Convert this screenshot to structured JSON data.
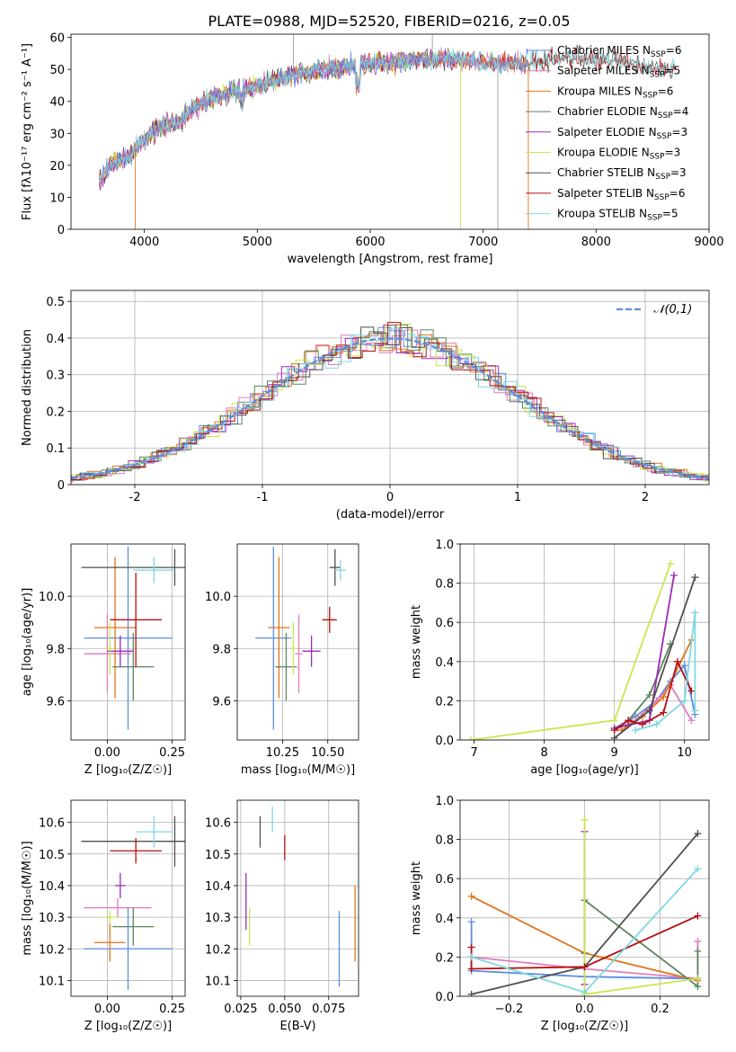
{
  "page_title": "PLATE=0988, MJD=52520, FIBERID=0216, z=0.05",
  "colors": {
    "Chabrier MILES": "#5b8ee0",
    "Salpeter MILES": "#e07cbf",
    "Kroupa MILES": "#e0751a",
    "Chabrier ELODIE": "#5c8560",
    "Salpeter ELODIE": "#9a2bb8",
    "Kroupa ELODIE": "#cbe650",
    "Chabrier STELIB": "#505050",
    "Salpeter STELIB": "#b51010",
    "Kroupa STELIB": "#7fd8e0",
    "normal": "#5b8ee0"
  },
  "chart_data": [
    {
      "id": "spectrum",
      "type": "line",
      "title": "PLATE=0988, MJD=52520, FIBERID=0216, z=0.05",
      "xlabel": "wavelength [Angstrom, rest frame]",
      "ylabel": "Flux [fλ10⁻¹⁷ erg cm⁻² s⁻¹ A⁻¹]",
      "xlim": [
        3350,
        9000
      ],
      "ylim": [
        0,
        61
      ],
      "xticks": [
        4000,
        5000,
        6000,
        7000,
        8000,
        9000
      ],
      "yticks": [
        0,
        10,
        20,
        30,
        40,
        50,
        60
      ],
      "grid": false,
      "legend": "top-right",
      "legend_entries": [
        {
          "name": "Chabrier MILES",
          "nssp": "6"
        },
        {
          "name": "Salpeter MILES",
          "nssp": "5"
        },
        {
          "name": "Kroupa MILES",
          "nssp": "6"
        },
        {
          "name": "Chabrier ELODIE",
          "nssp": "4"
        },
        {
          "name": "Salpeter ELODIE",
          "nssp": "3"
        },
        {
          "name": "Kroupa ELODIE",
          "nssp": "3"
        },
        {
          "name": "Chabrier STELIB",
          "nssp": "3"
        },
        {
          "name": "Salpeter STELIB",
          "nssp": "6"
        },
        {
          "name": "Kroupa STELIB",
          "nssp": "5"
        }
      ],
      "continuum": [
        [
          3600,
          15
        ],
        [
          3700,
          20
        ],
        [
          3800,
          22
        ],
        [
          3900,
          24
        ],
        [
          4000,
          28
        ],
        [
          4100,
          31
        ],
        [
          4200,
          33
        ],
        [
          4300,
          33
        ],
        [
          4400,
          37
        ],
        [
          4600,
          41
        ],
        [
          4800,
          43
        ],
        [
          5000,
          45
        ],
        [
          5200,
          47
        ],
        [
          5400,
          49
        ],
        [
          5600,
          50
        ],
        [
          5800,
          51
        ],
        [
          6000,
          52
        ],
        [
          6200,
          52
        ],
        [
          6400,
          53
        ],
        [
          6600,
          53
        ],
        [
          6800,
          53
        ],
        [
          7000,
          52
        ],
        [
          7200,
          52
        ],
        [
          7400,
          52
        ],
        [
          7600,
          53
        ],
        [
          7800,
          54
        ],
        [
          8000,
          53
        ],
        [
          8200,
          53
        ],
        [
          8400,
          51
        ],
        [
          8600,
          50
        ],
        [
          8700,
          50
        ]
      ],
      "drops": [
        [
          3920,
          0
        ],
        [
          5320,
          61
        ],
        [
          6550,
          61
        ],
        [
          6800,
          0
        ],
        [
          7130,
          0
        ],
        [
          7400,
          0
        ]
      ]
    },
    {
      "id": "residuals",
      "type": "step",
      "xlabel": "(data-model)/error",
      "ylabel": "Normed distribution",
      "xlim": [
        -2.5,
        2.5
      ],
      "ylim": [
        0,
        0.53
      ],
      "xticks": [
        -2,
        -1,
        0,
        1,
        2
      ],
      "yticks": [
        0.0,
        0.1,
        0.2,
        0.3,
        0.4,
        0.5
      ],
      "grid": true,
      "legend": "top-right",
      "normal_label": "𝒩(0,1)"
    },
    {
      "id": "age-vs-Z",
      "type": "errorbar",
      "xlabel": "Z [log₁₀(Z/Z☉)]",
      "ylabel": "age  [log₁₀(age/yr)]",
      "xlim": [
        -0.14,
        0.3
      ],
      "ylim": [
        9.45,
        10.2
      ],
      "xticks": [
        0.0,
        0.25
      ],
      "xticklabels": [
        "0.00",
        "0.25"
      ],
      "yticks": [
        9.6,
        9.8,
        10.0
      ],
      "yticklabels": [
        "9.6",
        "9.8",
        "10.0"
      ],
      "grid": true,
      "points": [
        {
          "s": "Chabrier MILES",
          "x": 0.08,
          "y": 9.84,
          "xe": 0.17,
          "ye": 0.35
        },
        {
          "s": "Salpeter MILES",
          "x": 0.0,
          "y": 9.78,
          "xe": 0.09,
          "ye": 0.15
        },
        {
          "s": "Kroupa MILES",
          "x": 0.03,
          "y": 9.88,
          "xe": 0.08,
          "ye": 0.27
        },
        {
          "s": "Chabrier ELODIE",
          "x": 0.1,
          "y": 9.73,
          "xe": 0.08,
          "ye": 0.13
        },
        {
          "s": "Salpeter ELODIE",
          "x": 0.05,
          "y": 9.79,
          "xe": 0.05,
          "ye": 0.06
        },
        {
          "s": "Kroupa ELODIE",
          "x": 0.01,
          "y": 9.8,
          "xe": 0.02,
          "ye": 0.1
        },
        {
          "s": "Chabrier STELIB",
          "x": 0.26,
          "y": 10.11,
          "xe": 0.36,
          "ye": 0.07
        },
        {
          "s": "Salpeter STELIB",
          "x": 0.11,
          "y": 9.91,
          "xe": 0.1,
          "ye": 0.18
        },
        {
          "s": "Kroupa STELIB",
          "x": 0.18,
          "y": 10.1,
          "xe": 0.08,
          "ye": 0.05
        }
      ]
    },
    {
      "id": "age-vs-mass",
      "type": "errorbar",
      "xlabel": "mass [log₁₀(M/M☉)]",
      "ylabel": "",
      "xlim": [
        10.0,
        10.67
      ],
      "ylim": [
        9.45,
        10.2
      ],
      "xticks": [
        10.25,
        10.5
      ],
      "xticklabels": [
        "10.25",
        "10.50"
      ],
      "yticks": [
        9.6,
        9.8,
        10.0
      ],
      "yticklabels": [
        "9.6",
        "9.8",
        "10.0"
      ],
      "grid": true,
      "points": [
        {
          "s": "Chabrier MILES",
          "x": 10.2,
          "y": 9.84,
          "xe": 0.1,
          "ye": 0.35
        },
        {
          "s": "Salpeter MILES",
          "x": 10.34,
          "y": 9.78,
          "xe": 0.02,
          "ye": 0.15
        },
        {
          "s": "Kroupa MILES",
          "x": 10.23,
          "y": 9.88,
          "xe": 0.06,
          "ye": 0.27
        },
        {
          "s": "Chabrier ELODIE",
          "x": 10.27,
          "y": 9.73,
          "xe": 0.06,
          "ye": 0.13
        },
        {
          "s": "Salpeter ELODIE",
          "x": 10.41,
          "y": 9.79,
          "xe": 0.05,
          "ye": 0.06
        },
        {
          "s": "Kroupa ELODIE",
          "x": 10.31,
          "y": 9.8,
          "xe": 0.02,
          "ye": 0.1
        },
        {
          "s": "Chabrier STELIB",
          "x": 10.54,
          "y": 10.11,
          "xe": 0.03,
          "ye": 0.07
        },
        {
          "s": "Salpeter STELIB",
          "x": 10.51,
          "y": 9.91,
          "xe": 0.04,
          "ye": 0.05
        },
        {
          "s": "Kroupa STELIB",
          "x": 10.57,
          "y": 10.1,
          "xe": 0.03,
          "ye": 0.04
        }
      ]
    },
    {
      "id": "weight-vs-age",
      "type": "line",
      "xlabel": "age  [log₁₀(age/yr)]",
      "ylabel": "mass weight",
      "xlim": [
        6.8,
        10.35
      ],
      "ylim": [
        0,
        1.0
      ],
      "xticks": [
        7,
        8,
        9,
        10
      ],
      "xticklabels": [
        "7",
        "8",
        "9",
        "10"
      ],
      "yticks": [
        0.0,
        0.2,
        0.4,
        0.6,
        0.8,
        1.0
      ],
      "yticklabels": [
        "0.0",
        "0.2",
        "0.4",
        "0.6",
        "0.8",
        "1.0"
      ],
      "grid": true,
      "series": [
        {
          "s": "Chabrier MILES",
          "x": [
            9.0,
            9.3,
            9.6,
            9.8,
            10.0,
            10.15
          ],
          "y": [
            0.06,
            0.12,
            0.2,
            0.3,
            0.38,
            0.13
          ]
        },
        {
          "s": "Salpeter MILES",
          "x": [
            9.0,
            9.3,
            9.6,
            9.8,
            10.1
          ],
          "y": [
            0.05,
            0.1,
            0.2,
            0.28,
            0.1
          ]
        },
        {
          "s": "Kroupa MILES",
          "x": [
            9.1,
            9.4,
            9.7,
            10.1
          ],
          "y": [
            0.05,
            0.12,
            0.22,
            0.51
          ]
        },
        {
          "s": "Chabrier ELODIE",
          "x": [
            9.2,
            9.5,
            9.8
          ],
          "y": [
            0.1,
            0.23,
            0.49
          ]
        },
        {
          "s": "Salpeter ELODIE",
          "x": [
            9.0,
            9.5,
            9.85
          ],
          "y": [
            0.06,
            0.1,
            0.84
          ]
        },
        {
          "s": "Kroupa ELODIE",
          "x": [
            6.95,
            9.0,
            9.8
          ],
          "y": [
            0.0,
            0.1,
            0.9
          ]
        },
        {
          "s": "Chabrier STELIB",
          "x": [
            9.0,
            9.5,
            10.15
          ],
          "y": [
            0.01,
            0.15,
            0.83
          ]
        },
        {
          "s": "Salpeter STELIB",
          "x": [
            9.0,
            9.2,
            9.4,
            9.7,
            9.9,
            10.1
          ],
          "y": [
            0.05,
            0.1,
            0.08,
            0.14,
            0.4,
            0.25
          ]
        },
        {
          "s": "Kroupa STELIB",
          "x": [
            9.3,
            9.6,
            10.0,
            10.15,
            10.15
          ],
          "y": [
            0.05,
            0.08,
            0.2,
            0.65,
            0.15
          ]
        }
      ]
    },
    {
      "id": "mass-vs-Z",
      "type": "errorbar",
      "xlabel": "Z [log₁₀(Z/Z☉)]",
      "ylabel": "mass [log₁₀(M/M☉)]",
      "xlim": [
        -0.14,
        0.3
      ],
      "ylim": [
        10.05,
        10.67
      ],
      "xticks": [
        0.0,
        0.25
      ],
      "xticklabels": [
        "0.00",
        "0.25"
      ],
      "yticks": [
        10.1,
        10.2,
        10.3,
        10.4,
        10.5,
        10.6
      ],
      "yticklabels": [
        "10.1",
        "10.2",
        "10.3",
        "10.4",
        "10.5",
        "10.6"
      ],
      "grid": true,
      "points": [
        {
          "s": "Chabrier MILES",
          "x": 0.08,
          "y": 10.2,
          "xe": 0.17,
          "ye": 0.13
        },
        {
          "s": "Salpeter MILES",
          "x": 0.04,
          "y": 10.33,
          "xe": 0.13,
          "ye": 0.03
        },
        {
          "s": "Kroupa MILES",
          "x": 0.01,
          "y": 10.22,
          "xe": 0.06,
          "ye": 0.06
        },
        {
          "s": "Chabrier ELODIE",
          "x": 0.1,
          "y": 10.27,
          "xe": 0.08,
          "ye": 0.06
        },
        {
          "s": "Salpeter ELODIE",
          "x": 0.05,
          "y": 10.4,
          "xe": 0.02,
          "ye": 0.04
        },
        {
          "s": "Kroupa ELODIE",
          "x": 0.01,
          "y": 10.3,
          "xe": 0.03,
          "ye": 0.02
        },
        {
          "s": "Chabrier STELIB",
          "x": 0.26,
          "y": 10.54,
          "xe": 0.36,
          "ye": 0.08
        },
        {
          "s": "Salpeter STELIB",
          "x": 0.11,
          "y": 10.51,
          "xe": 0.1,
          "ye": 0.04
        },
        {
          "s": "Kroupa STELIB",
          "x": 0.18,
          "y": 10.57,
          "xe": 0.07,
          "ye": 0.05
        }
      ]
    },
    {
      "id": "mass-vs-ebv",
      "type": "errorbar",
      "xlabel": "E(B-V)",
      "ylabel": "",
      "xlim": [
        0.023,
        0.092
      ],
      "ylim": [
        10.05,
        10.67
      ],
      "xticks": [
        0.025,
        0.05,
        0.075
      ],
      "xticklabels": [
        "0.025",
        "0.050",
        "0.075"
      ],
      "yticks": [
        10.1,
        10.2,
        10.3,
        10.4,
        10.5,
        10.6
      ],
      "yticklabels": [
        "10.1",
        "10.2",
        "10.3",
        "10.4",
        "10.5",
        "10.6"
      ],
      "grid": true,
      "points": [
        {
          "s": "Chabrier MILES",
          "x": 0.081,
          "y": 10.2,
          "xe": 0,
          "ye": 0.12
        },
        {
          "s": "Kroupa MILES",
          "x": 0.09,
          "y": 10.28,
          "xe": 0,
          "ye": 0.12
        },
        {
          "s": "Salpeter ELODIE",
          "x": 0.028,
          "y": 10.35,
          "xe": 0,
          "ye": 0.09
        },
        {
          "s": "Kroupa ELODIE",
          "x": 0.03,
          "y": 10.27,
          "xe": 0,
          "ye": 0.06
        },
        {
          "s": "Chabrier STELIB",
          "x": 0.036,
          "y": 10.57,
          "xe": 0,
          "ye": 0.05
        },
        {
          "s": "Salpeter STELIB",
          "x": 0.05,
          "y": 10.52,
          "xe": 0,
          "ye": 0.04
        },
        {
          "s": "Kroupa STELIB",
          "x": 0.043,
          "y": 10.61,
          "xe": 0,
          "ye": 0.04
        }
      ]
    },
    {
      "id": "weight-vs-Z",
      "type": "line",
      "xlabel": "Z [log₁₀(Z/Z☉)]",
      "ylabel": "mass weight",
      "xlim": [
        -0.33,
        0.33
      ],
      "ylim": [
        0,
        1.0
      ],
      "xticks": [
        -0.2,
        0.0,
        0.2
      ],
      "xticklabels": [
        "−0.2",
        "0.0",
        "0.2"
      ],
      "yticks": [
        0.0,
        0.2,
        0.4,
        0.6,
        0.8,
        1.0
      ],
      "yticklabels": [
        "0.0",
        "0.2",
        "0.4",
        "0.6",
        "0.8",
        "1.0"
      ],
      "grid": true,
      "series": [
        {
          "s": "Chabrier MILES",
          "x": [
            -0.3,
            -0.3,
            0.0,
            0.3
          ],
          "y": [
            0.38,
            0.13,
            0.1,
            0.09
          ]
        },
        {
          "s": "Salpeter MILES",
          "x": [
            -0.3,
            0.0,
            0.3,
            0.3
          ],
          "y": [
            0.2,
            0.14,
            0.09,
            0.28
          ]
        },
        {
          "s": "Kroupa MILES",
          "x": [
            -0.3,
            0.0,
            0.3
          ],
          "y": [
            0.51,
            0.22,
            0.08
          ]
        },
        {
          "s": "Chabrier ELODIE",
          "x": [
            0.0,
            0.0,
            0.3,
            0.3
          ],
          "y": [
            0.22,
            0.49,
            0.05,
            0.23
          ]
        },
        {
          "s": "Salpeter ELODIE",
          "x": [
            0.0,
            0.0
          ],
          "y": [
            0.84,
            0.06
          ]
        },
        {
          "s": "Kroupa ELODIE",
          "x": [
            0.0,
            0.0,
            0.3
          ],
          "y": [
            0.9,
            0.01,
            0.09
          ]
        },
        {
          "s": "Chabrier STELIB",
          "x": [
            -0.3,
            0.0,
            0.3
          ],
          "y": [
            0.01,
            0.15,
            0.83
          ]
        },
        {
          "s": "Salpeter STELIB",
          "x": [
            -0.3,
            -0.3,
            0.0,
            0.3
          ],
          "y": [
            0.25,
            0.14,
            0.15,
            0.41
          ]
        },
        {
          "s": "Kroupa STELIB",
          "x": [
            -0.3,
            0.0,
            0.3
          ],
          "y": [
            0.2,
            0.02,
            0.65
          ]
        }
      ]
    }
  ]
}
